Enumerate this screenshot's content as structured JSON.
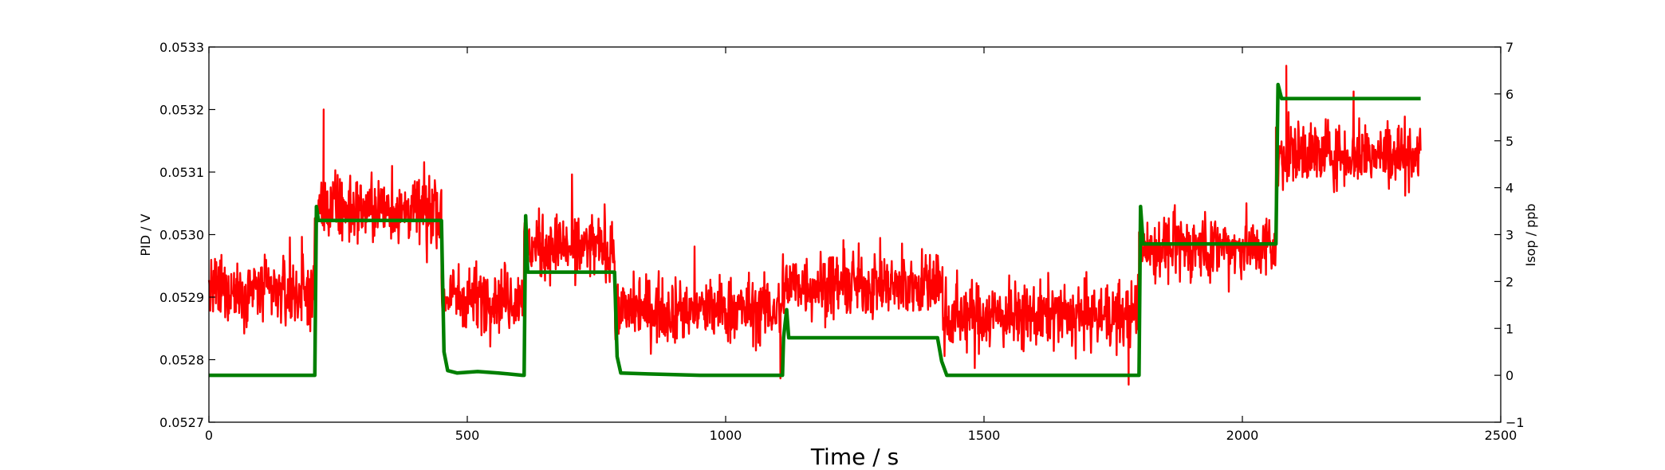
{
  "chart_data": {
    "type": "line",
    "xlabel": "Time / s",
    "ylabel": "PID / V",
    "ylabel_right": "Isop / ppb",
    "xlim": [
      0,
      2500
    ],
    "ylim": [
      0.0527,
      0.0533
    ],
    "ylim_right": [
      -1,
      7
    ],
    "x_ticks": [
      0,
      500,
      1000,
      1500,
      2000,
      2500
    ],
    "x_tick_labels": [
      "0",
      "500",
      "1000",
      "1500",
      "2000",
      "2500"
    ],
    "y_ticks": [
      0.0527,
      0.0528,
      0.0529,
      0.053,
      0.0531,
      0.0532,
      0.0533
    ],
    "y_tick_labels": [
      "0.0527",
      "0.0528",
      "0.0529",
      "0.0530",
      "0.0531",
      "0.0532",
      "0.0533"
    ],
    "y_right_ticks": [
      -1,
      0,
      1,
      2,
      3,
      4,
      5,
      6,
      7
    ],
    "y_right_tick_labels": [
      "−1",
      "0",
      "1",
      "2",
      "3",
      "4",
      "5",
      "6",
      "7"
    ],
    "grid": false,
    "series": [
      {
        "axis": "left",
        "color": "#ff0000",
        "noise_amplitude": 5e-05,
        "segments": [
          {
            "x_start": 0,
            "x_end": 205,
            "mean": 0.05291
          },
          {
            "x_start": 205,
            "x_end": 450,
            "mean": 0.05304
          },
          {
            "x_start": 450,
            "x_end": 610,
            "mean": 0.0529
          },
          {
            "x_start": 610,
            "x_end": 785,
            "mean": 0.05298
          },
          {
            "x_start": 785,
            "x_end": 1110,
            "mean": 0.05288
          },
          {
            "x_start": 1110,
            "x_end": 1420,
            "mean": 0.05292
          },
          {
            "x_start": 1420,
            "x_end": 1800,
            "mean": 0.05287
          },
          {
            "x_start": 1800,
            "x_end": 2065,
            "mean": 0.05298
          },
          {
            "x_start": 2065,
            "x_end": 2345,
            "mean": 0.05313
          }
        ],
        "spikes": [
          {
            "x": 222,
            "y": 0.0532
          },
          {
            "x": 2085,
            "y": 0.05327
          },
          {
            "x": 1106,
            "y": 0.05277
          },
          {
            "x": 1780,
            "y": 0.05276
          }
        ]
      },
      {
        "axis": "right",
        "color": "#007f00",
        "points": [
          [
            0,
            0.0
          ],
          [
            205,
            0.0
          ],
          [
            208,
            3.6
          ],
          [
            212,
            3.3
          ],
          [
            450,
            3.3
          ],
          [
            455,
            0.5
          ],
          [
            462,
            0.1
          ],
          [
            480,
            0.05
          ],
          [
            520,
            0.08
          ],
          [
            560,
            0.05
          ],
          [
            607,
            0.0
          ],
          [
            610,
            0.0
          ],
          [
            613,
            3.4
          ],
          [
            617,
            2.2
          ],
          [
            785,
            2.2
          ],
          [
            790,
            0.4
          ],
          [
            797,
            0.05
          ],
          [
            850,
            0.03
          ],
          [
            950,
            0.0
          ],
          [
            1108,
            0.0
          ],
          [
            1110,
            0.0
          ],
          [
            1112,
            0.8
          ],
          [
            1118,
            1.4
          ],
          [
            1122,
            0.8
          ],
          [
            1410,
            0.8
          ],
          [
            1418,
            0.3
          ],
          [
            1428,
            0.0
          ],
          [
            1798,
            0.0
          ],
          [
            1800,
            0.0
          ],
          [
            1803,
            3.6
          ],
          [
            1808,
            2.8
          ],
          [
            2065,
            2.8
          ],
          [
            2069,
            6.2
          ],
          [
            2076,
            5.9
          ],
          [
            2345,
            5.9
          ]
        ]
      }
    ]
  }
}
